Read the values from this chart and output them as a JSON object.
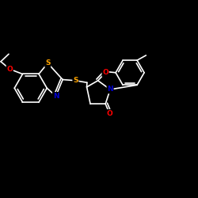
{
  "background_color": "#000000",
  "bond_color": "#ffffff",
  "atom_colors": {
    "S": "#ffa500",
    "N": "#0000cd",
    "O": "#ff0000",
    "C": "#ffffff"
  },
  "bond_width": 1.2,
  "figsize": [
    2.5,
    2.5
  ],
  "dpi": 100,
  "xlim": [
    0.0,
    1.0
  ],
  "ylim": [
    0.1,
    0.9
  ]
}
